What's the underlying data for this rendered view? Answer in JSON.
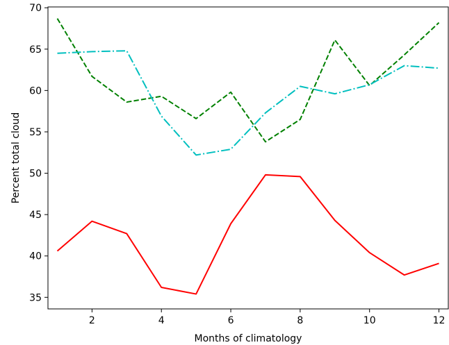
{
  "chart_data": {
    "type": "line",
    "title": "",
    "xlabel": "Months of climatology",
    "ylabel": "Percent total cloud",
    "xlim": [
      0.73,
      12.27
    ],
    "ylim": [
      33.6,
      70.1
    ],
    "xticks": [
      2,
      4,
      6,
      8,
      10,
      12
    ],
    "yticks": [
      35,
      40,
      45,
      50,
      55,
      60,
      65,
      70
    ],
    "grid": false,
    "legend": "none",
    "x": [
      1,
      2,
      3,
      4,
      5,
      6,
      7,
      8,
      9,
      10,
      11,
      12
    ],
    "series": [
      {
        "color": "#ff0000",
        "linestyle": "solid",
        "values": [
          40.6,
          44.2,
          42.7,
          36.2,
          35.4,
          43.9,
          49.8,
          49.6,
          44.3,
          40.4,
          37.7,
          39.1
        ]
      },
      {
        "color": "#008000",
        "linestyle": "dashed",
        "values": [
          68.7,
          61.7,
          58.6,
          59.3,
          56.6,
          59.8,
          53.8,
          56.5,
          66.1,
          60.6,
          64.3,
          68.2
        ]
      },
      {
        "color": "#00bfbf",
        "linestyle": "dashdot",
        "values": [
          64.5,
          64.7,
          64.8,
          56.9,
          52.2,
          52.9,
          57.3,
          60.5,
          59.6,
          60.7,
          63.0,
          62.7
        ]
      }
    ]
  }
}
